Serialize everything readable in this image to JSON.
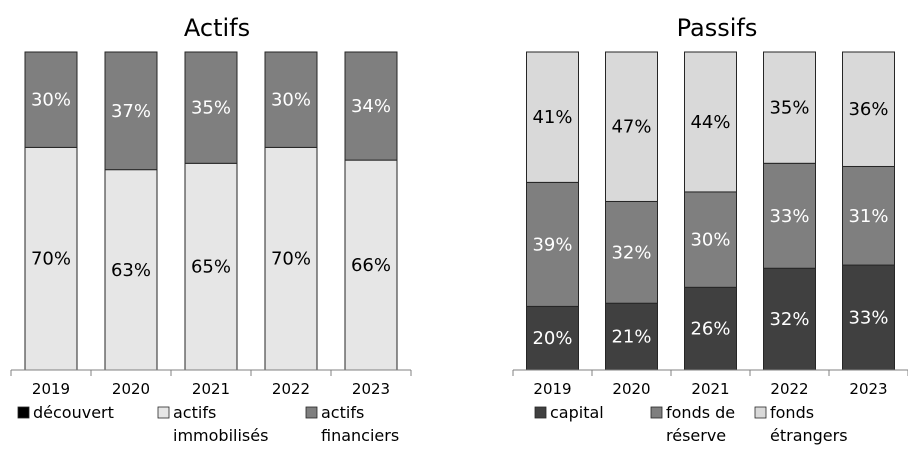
{
  "chart_data": [
    {
      "type": "bar",
      "stacked": true,
      "percent": true,
      "title": "Actifs",
      "categories": [
        "2019",
        "2020",
        "2021",
        "2022",
        "2023"
      ],
      "legend_position": "bottom",
      "series": [
        {
          "name": "découvert",
          "color": "#000000",
          "values": [
            0,
            0,
            0,
            0,
            0
          ],
          "labels": [
            "",
            "",
            "",
            "",
            ""
          ]
        },
        {
          "name": "actifs immobilisés",
          "color": "#e6e6e6",
          "values": [
            70,
            63,
            65,
            70,
            66
          ],
          "labels": [
            "70%",
            "63%",
            "65%",
            "70%",
            "66%"
          ]
        },
        {
          "name": "actifs financiers",
          "color": "#7f7f7f",
          "values": [
            30,
            37,
            35,
            30,
            34
          ],
          "labels": [
            "30%",
            "37%",
            "35%",
            "30%",
            "34%"
          ]
        }
      ]
    },
    {
      "type": "bar",
      "stacked": true,
      "percent": true,
      "title": "Passifs",
      "categories": [
        "2019",
        "2020",
        "2021",
        "2022",
        "2023"
      ],
      "legend_position": "bottom",
      "series": [
        {
          "name": "capital",
          "color": "#404040",
          "values": [
            20,
            21,
            26,
            32,
            33
          ],
          "labels": [
            "20%",
            "21%",
            "26%",
            "32%",
            "33%"
          ]
        },
        {
          "name": "fonds de réserve",
          "color": "#7f7f7f",
          "values": [
            39,
            32,
            30,
            33,
            31
          ],
          "labels": [
            "39%",
            "32%",
            "30%",
            "33%",
            "31%"
          ]
        },
        {
          "name": "fonds étrangers",
          "color": "#d9d9d9",
          "values": [
            41,
            47,
            44,
            35,
            36
          ],
          "labels": [
            "41%",
            "47%",
            "44%",
            "35%",
            "36%"
          ]
        }
      ]
    }
  ]
}
